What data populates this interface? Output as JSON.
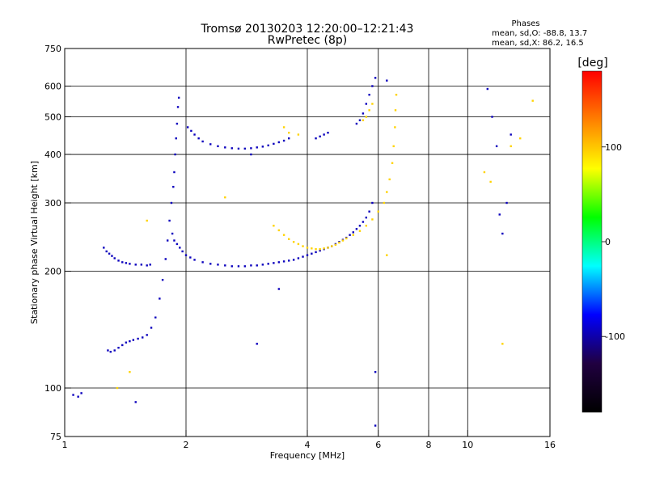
{
  "chart_data": {
    "type": "scatter",
    "title": "Tromsø 20130203 12:20:00–12:21:43",
    "subtitle": "RwPretec (8p)",
    "xlabel": "Frequency [MHz]",
    "ylabel": "Stationary phase Virtual Height [km]",
    "x_scale": "log",
    "y_scale": "log",
    "xlim": [
      1,
      16
    ],
    "ylim": [
      75,
      750
    ],
    "x_ticks": [
      1,
      2,
      4,
      6,
      8,
      10,
      16
    ],
    "x_tick_labels": [
      "1",
      "2",
      "4",
      "6",
      "8",
      "10",
      "16"
    ],
    "y_ticks": [
      75,
      100,
      200,
      300,
      400,
      500,
      600,
      750
    ],
    "y_tick_labels": [
      "75",
      "100",
      "200",
      "300",
      "400",
      "500",
      "600",
      "750"
    ],
    "grid": true,
    "legend": {
      "heading": "Phases",
      "lines": [
        "mean, sd,O: -88.8, 13.7",
        "mean, sd,X: 86.2, 16.5"
      ]
    },
    "colorbar": {
      "label": "[deg]",
      "min": -180,
      "max": 180,
      "ticks": [
        100,
        0,
        -100
      ],
      "tick_labels": [
        "100",
        "0",
        "-100"
      ],
      "colors": [
        "#ff0000",
        "#ff8000",
        "#ffff00",
        "#00ff00",
        "#00ffff",
        "#0000ff",
        "#200040",
        "#000000"
      ]
    },
    "series": [
      {
        "phase": -95,
        "points": [
          [
            1.25,
            230
          ],
          [
            1.27,
            225
          ],
          [
            1.29,
            222
          ],
          [
            1.31,
            219
          ],
          [
            1.33,
            216
          ],
          [
            1.36,
            213
          ],
          [
            1.39,
            211
          ],
          [
            1.42,
            210
          ],
          [
            1.45,
            209
          ],
          [
            1.5,
            208
          ],
          [
            1.55,
            208
          ],
          [
            1.6,
            207
          ],
          [
            1.63,
            208
          ],
          [
            1.28,
            125
          ],
          [
            1.3,
            124
          ],
          [
            1.33,
            125
          ],
          [
            1.36,
            127
          ],
          [
            1.39,
            129
          ],
          [
            1.42,
            131
          ],
          [
            1.45,
            132
          ],
          [
            1.48,
            133
          ],
          [
            1.52,
            134
          ],
          [
            1.56,
            135
          ],
          [
            1.6,
            137
          ],
          [
            1.64,
            143
          ],
          [
            1.68,
            152
          ],
          [
            1.72,
            170
          ],
          [
            1.75,
            190
          ],
          [
            1.78,
            215
          ],
          [
            1.8,
            240
          ],
          [
            1.82,
            270
          ],
          [
            1.84,
            300
          ],
          [
            1.86,
            330
          ],
          [
            1.87,
            360
          ],
          [
            1.88,
            400
          ],
          [
            1.89,
            440
          ],
          [
            1.9,
            480
          ],
          [
            1.91,
            530
          ],
          [
            1.92,
            560
          ],
          [
            1.85,
            250
          ],
          [
            1.87,
            240
          ],
          [
            1.9,
            235
          ],
          [
            1.93,
            230
          ],
          [
            1.96,
            225
          ],
          [
            2.0,
            220
          ],
          [
            2.05,
            217
          ],
          [
            2.1,
            214
          ],
          [
            2.2,
            211
          ],
          [
            2.3,
            209
          ],
          [
            2.4,
            208
          ],
          [
            2.5,
            207
          ],
          [
            2.6,
            206
          ],
          [
            2.7,
            206
          ],
          [
            2.8,
            206
          ],
          [
            2.9,
            207
          ],
          [
            3.0,
            207
          ],
          [
            3.1,
            208
          ],
          [
            3.2,
            209
          ],
          [
            3.3,
            210
          ],
          [
            3.4,
            211
          ],
          [
            3.5,
            212
          ],
          [
            3.6,
            213
          ],
          [
            3.7,
            214
          ],
          [
            3.8,
            216
          ],
          [
            3.9,
            218
          ],
          [
            4.0,
            220
          ],
          [
            4.1,
            222
          ],
          [
            4.2,
            224
          ],
          [
            4.3,
            226
          ],
          [
            4.4,
            228
          ],
          [
            4.5,
            230
          ],
          [
            4.6,
            232
          ],
          [
            4.7,
            235
          ],
          [
            4.8,
            238
          ],
          [
            4.9,
            241
          ],
          [
            5.0,
            244
          ],
          [
            5.1,
            248
          ],
          [
            5.2,
            252
          ],
          [
            5.3,
            257
          ],
          [
            5.4,
            262
          ],
          [
            5.5,
            268
          ],
          [
            5.6,
            275
          ],
          [
            5.7,
            285
          ],
          [
            5.8,
            300
          ],
          [
            2.02,
            470
          ],
          [
            2.06,
            460
          ],
          [
            2.1,
            450
          ],
          [
            2.15,
            440
          ],
          [
            2.2,
            432
          ],
          [
            2.3,
            425
          ],
          [
            2.4,
            420
          ],
          [
            2.5,
            417
          ],
          [
            2.6,
            415
          ],
          [
            2.7,
            414
          ],
          [
            2.8,
            414
          ],
          [
            2.9,
            415
          ],
          [
            3.0,
            417
          ],
          [
            3.1,
            419
          ],
          [
            3.2,
            422
          ],
          [
            3.3,
            426
          ],
          [
            3.4,
            430
          ],
          [
            3.5,
            434
          ],
          [
            3.6,
            440
          ],
          [
            4.2,
            440
          ],
          [
            4.3,
            445
          ],
          [
            4.4,
            450
          ],
          [
            4.5,
            455
          ],
          [
            5.3,
            480
          ],
          [
            5.4,
            490
          ],
          [
            5.5,
            510
          ],
          [
            5.6,
            540
          ],
          [
            5.7,
            570
          ],
          [
            5.8,
            600
          ],
          [
            5.9,
            630
          ],
          [
            1.05,
            96
          ],
          [
            1.08,
            95
          ],
          [
            1.1,
            97
          ],
          [
            1.5,
            92
          ],
          [
            3.0,
            130
          ],
          [
            5.9,
            110
          ],
          [
            5.9,
            80
          ],
          [
            6.3,
            620
          ],
          [
            11.2,
            590
          ],
          [
            11.5,
            500
          ],
          [
            11.8,
            420
          ],
          [
            12.5,
            300
          ],
          [
            12.0,
            280
          ],
          [
            12.2,
            250
          ],
          [
            12.8,
            450
          ],
          [
            2.9,
            400
          ],
          [
            3.4,
            180
          ]
        ]
      },
      {
        "phase": 95,
        "points": [
          [
            3.3,
            262
          ],
          [
            3.4,
            255
          ],
          [
            3.5,
            248
          ],
          [
            3.6,
            242
          ],
          [
            3.7,
            238
          ],
          [
            3.8,
            235
          ],
          [
            3.9,
            232
          ],
          [
            4.0,
            230
          ],
          [
            4.1,
            229
          ],
          [
            4.2,
            228
          ],
          [
            4.3,
            228
          ],
          [
            4.4,
            229
          ],
          [
            4.5,
            230
          ],
          [
            4.6,
            232
          ],
          [
            4.7,
            234
          ],
          [
            4.8,
            237
          ],
          [
            4.9,
            240
          ],
          [
            5.0,
            243
          ],
          [
            5.2,
            248
          ],
          [
            5.4,
            254
          ],
          [
            5.6,
            262
          ],
          [
            5.8,
            272
          ],
          [
            6.0,
            285
          ],
          [
            6.2,
            300
          ],
          [
            6.3,
            320
          ],
          [
            6.4,
            345
          ],
          [
            6.5,
            380
          ],
          [
            6.55,
            420
          ],
          [
            6.6,
            470
          ],
          [
            6.62,
            520
          ],
          [
            6.65,
            570
          ],
          [
            5.5,
            490
          ],
          [
            5.6,
            500
          ],
          [
            5.7,
            520
          ],
          [
            5.8,
            540
          ],
          [
            3.5,
            470
          ],
          [
            3.6,
            455
          ],
          [
            3.8,
            450
          ],
          [
            6.3,
            220
          ],
          [
            11.0,
            360
          ],
          [
            11.4,
            340
          ],
          [
            12.2,
            130
          ],
          [
            14.5,
            550
          ],
          [
            12.8,
            420
          ],
          [
            13.5,
            440
          ],
          [
            1.35,
            100
          ],
          [
            1.45,
            110
          ],
          [
            1.6,
            270
          ],
          [
            2.5,
            310
          ]
        ]
      }
    ]
  }
}
